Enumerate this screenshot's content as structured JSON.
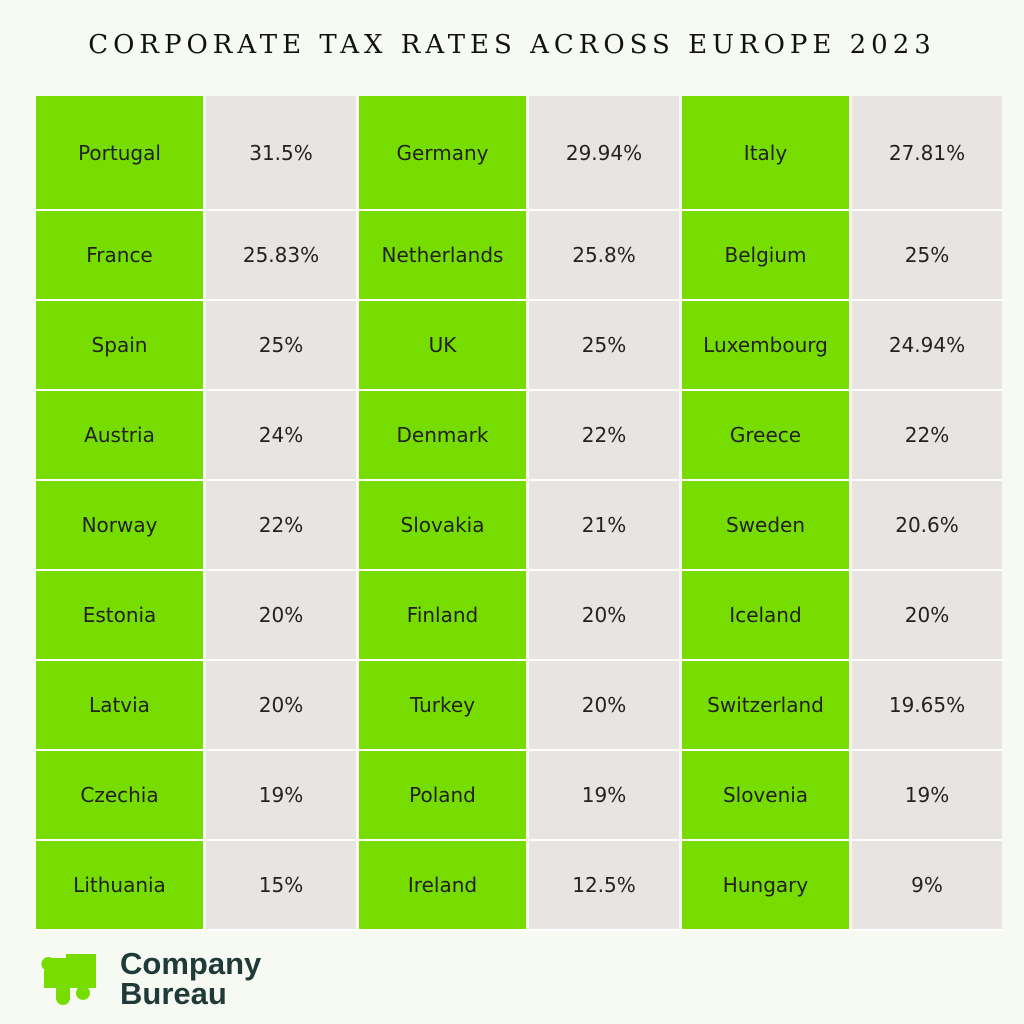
{
  "title": "CORPORATE TAX RATES ACROSS EUROPE 2023",
  "colors": {
    "country_cell": "#77dd00",
    "rate_cell": "#e8e4e1",
    "logo": "#77dd00"
  },
  "logo": {
    "icon": "puzzle-piece-icon",
    "line1": "Company",
    "line2": "Bureau"
  },
  "chart_data": {
    "type": "table",
    "title": "CORPORATE TAX RATES ACROSS EUROPE 2023",
    "rows": [
      [
        [
          "Portugal",
          "31.5%"
        ],
        [
          "Germany",
          "29.94%"
        ],
        [
          "Italy",
          "27.81%"
        ]
      ],
      [
        [
          "France",
          "25.83%"
        ],
        [
          "Netherlands",
          "25.8%"
        ],
        [
          "Belgium",
          "25%"
        ]
      ],
      [
        [
          "Spain",
          "25%"
        ],
        [
          "UK",
          "25%"
        ],
        [
          "Luxembourg",
          "24.94%"
        ]
      ],
      [
        [
          "Austria",
          "24%"
        ],
        [
          "Denmark",
          "22%"
        ],
        [
          "Greece",
          "22%"
        ]
      ],
      [
        [
          "Norway",
          "22%"
        ],
        [
          "Slovakia",
          "21%"
        ],
        [
          "Sweden",
          "20.6%"
        ]
      ],
      [
        [
          "Estonia",
          "20%"
        ],
        [
          "Finland",
          "20%"
        ],
        [
          "Iceland",
          "20%"
        ]
      ],
      [
        [
          "Latvia",
          "20%"
        ],
        [
          "Turkey",
          "20%"
        ],
        [
          "Switzerland",
          "19.65%"
        ]
      ],
      [
        [
          "Czechia",
          "19%"
        ],
        [
          "Poland",
          "19%"
        ],
        [
          "Slovenia",
          "19%"
        ]
      ],
      [
        [
          "Lithuania",
          "15%"
        ],
        [
          "Ireland",
          "12.5%"
        ],
        [
          "Hungary",
          "9%"
        ]
      ]
    ]
  }
}
